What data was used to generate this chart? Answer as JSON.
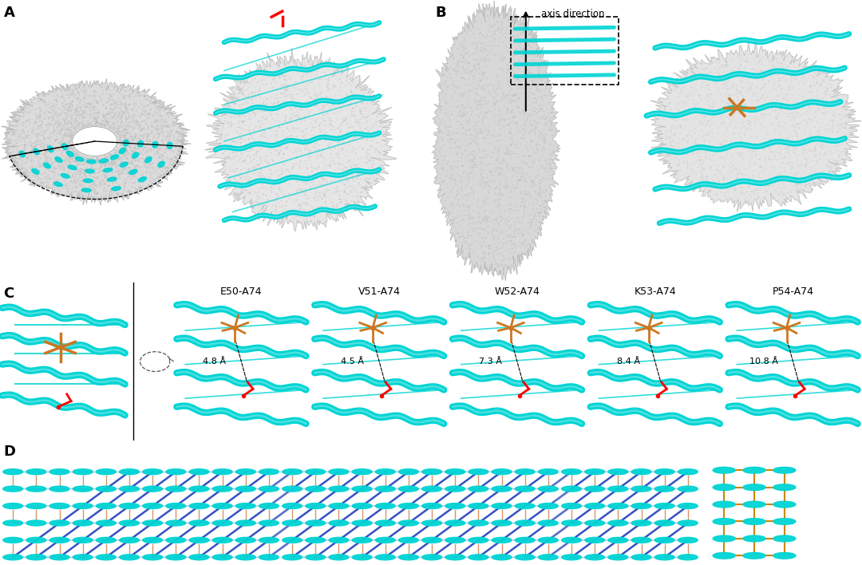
{
  "panel_A_label": "A",
  "panel_B_label": "B",
  "panel_C_label": "C",
  "panel_D_label": "D",
  "axis_direction_text": "axis direction",
  "c_labels": [
    "E50-A74",
    "V51-A74",
    "W52-A74",
    "K53-A74",
    "P54-A74"
  ],
  "c_distances": [
    "4.8 Å",
    "4.5 Å",
    "7.3 Å",
    "8.4 Å",
    "10.8 Å"
  ],
  "cyan_color": "#00D4D4",
  "cyan_dark": "#00B8B8",
  "gray_bg": "#D8D8D8",
  "gray_dots": "#AAAAAA",
  "orange_color": "#CC7722",
  "red_color": "#CC2222",
  "blue_dark": "#1133AA",
  "blue_mid": "#3355CC",
  "blue_light": "#8899DD",
  "white": "#FFFFFF",
  "label_fontsize": 13,
  "sublabel_fontsize": 9,
  "dist_fontsize": 8
}
